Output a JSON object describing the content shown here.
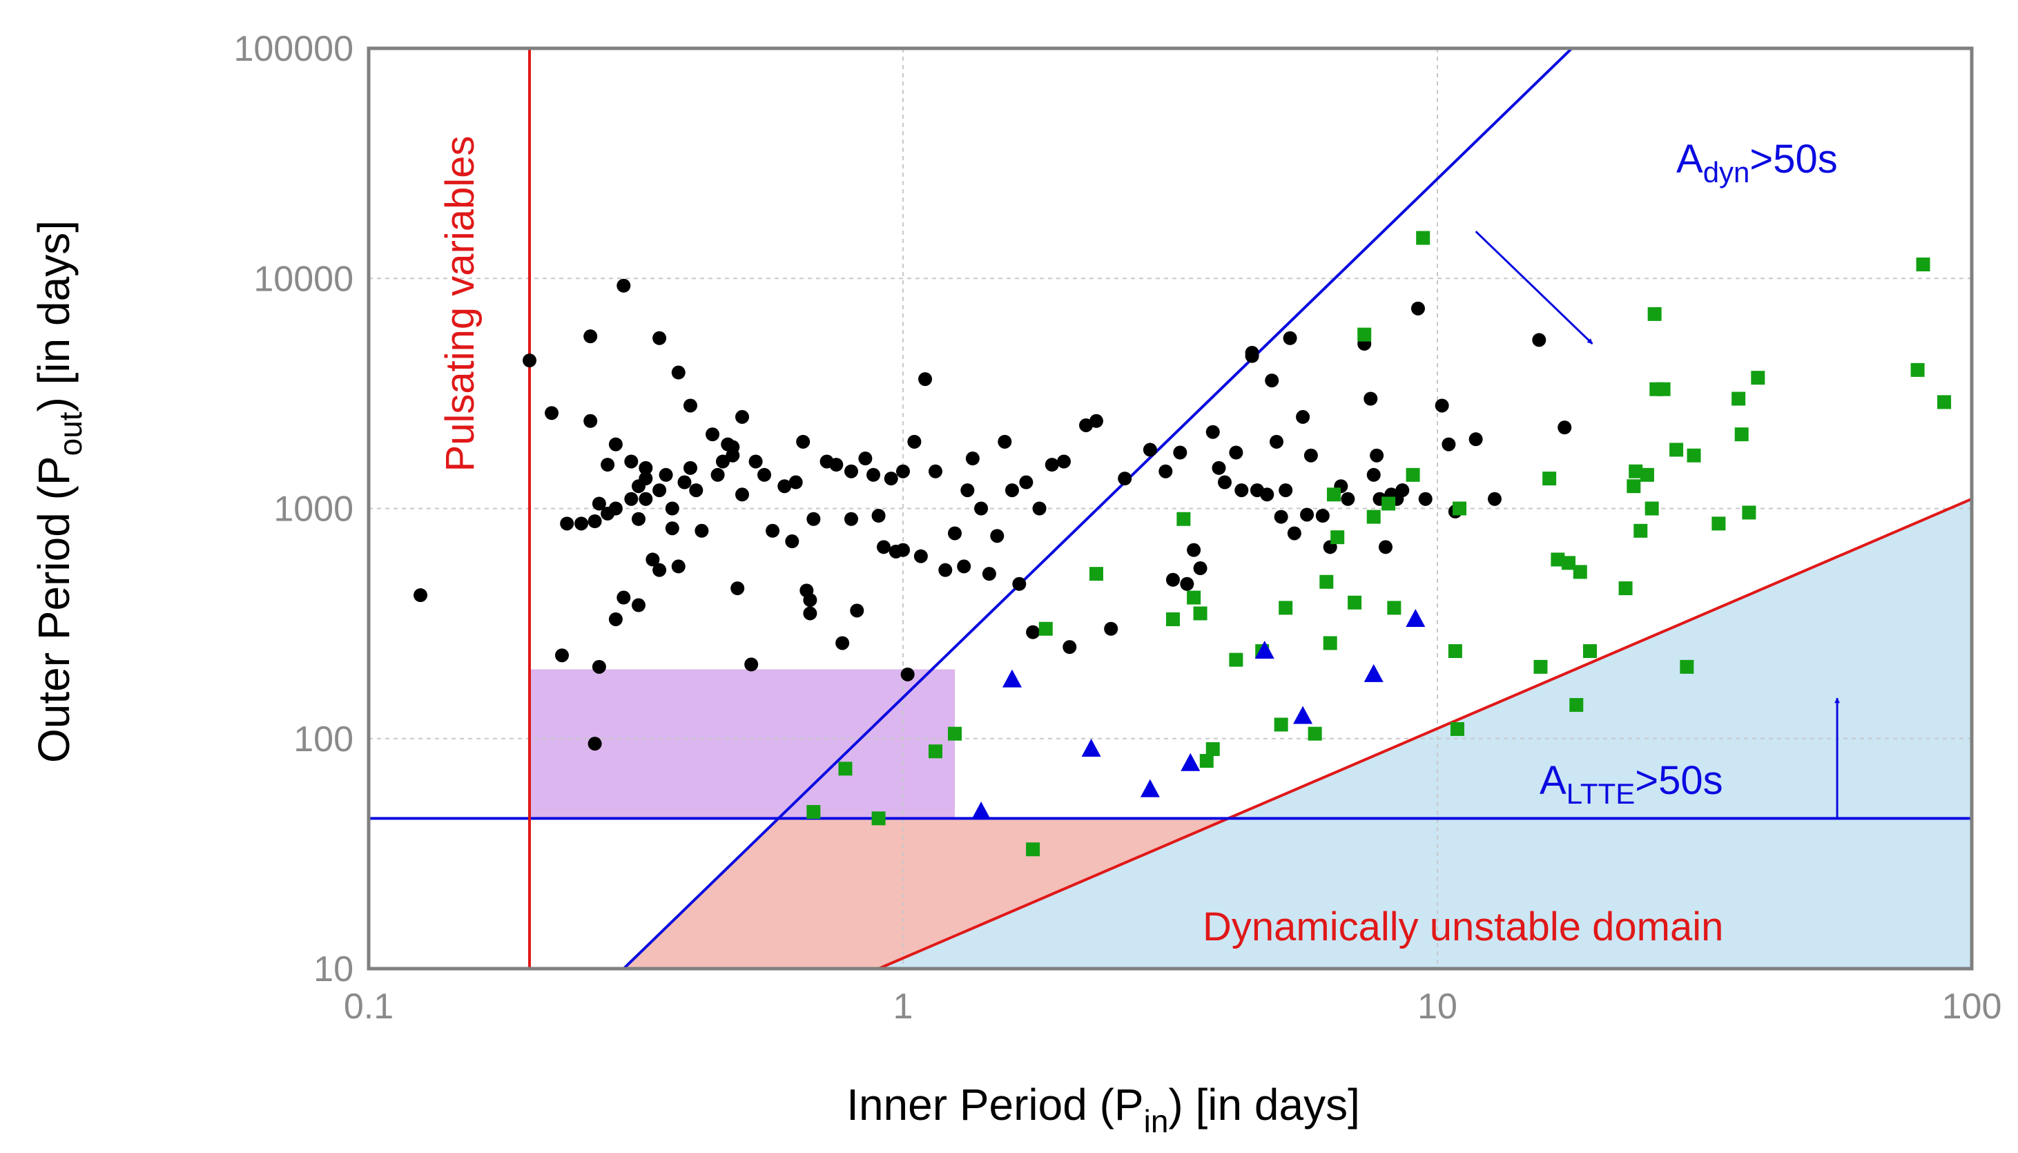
{
  "colors": {
    "black_points": "#000000",
    "green_points": "#12a012",
    "blue_points": "#0000e0",
    "blue_line": "#0a0ae0",
    "red_line": "#e01818",
    "unstable_fill": "#cce6f4",
    "pink_fill": "#f3bfb8",
    "purple_fill": "#dcb6ee",
    "axis_text": "#8a8a8a",
    "frame": "#808080"
  },
  "chart_data": {
    "type": "scatter",
    "xscale": "log",
    "yscale": "log",
    "xlim": [
      0.1,
      100
    ],
    "ylim": [
      10,
      100000
    ],
    "grid": true,
    "xlabel": {
      "pre": "Inner Period (P",
      "sub": "in",
      "post": ") [in days]"
    },
    "ylabel": {
      "pre": "Outer Period (P",
      "sub": "out",
      "post": ") [in days]"
    },
    "xticks": [
      {
        "value": 0.1,
        "label": "0.1"
      },
      {
        "value": 1,
        "label": "1"
      },
      {
        "value": 10,
        "label": "10"
      },
      {
        "value": 100,
        "label": "100"
      }
    ],
    "yticks": [
      {
        "value": 10,
        "label": "10"
      },
      {
        "value": 100,
        "label": "100"
      },
      {
        "value": 1000,
        "label": "1000"
      },
      {
        "value": 10000,
        "label": "10000"
      },
      {
        "value": 100000,
        "label": "100000"
      }
    ],
    "lines": {
      "pulsating_limit_x": 0.2,
      "ltte_limit_y": 45,
      "dyn_line": {
        "x1": 0.3,
        "y1": 10,
        "x2": 17.85,
        "y2": 100000
      },
      "unstable_line": {
        "x1": 0.9,
        "y1": 10,
        "x2": 100,
        "y2": 1100
      }
    },
    "regions": {
      "purple": {
        "xmin": 0.2,
        "xmax": 1.25,
        "ymin": 45,
        "ymax": 200
      }
    },
    "annotations": {
      "pulsating": "Pulsating variables",
      "adyn": {
        "pre": "A",
        "sub": "dyn",
        "post": ">50s"
      },
      "altte": {
        "pre": "A",
        "sub": "LTTE",
        "post": ">50s"
      },
      "unstable": "Dynamically unstable domain",
      "adyn_arrow": {
        "from": [
          11.8,
          16000
        ],
        "to": [
          19.5,
          5200
        ]
      },
      "altte_arrow": {
        "from": [
          56,
          45
        ],
        "to": [
          56,
          150
        ]
      }
    },
    "series": [
      {
        "name": "black",
        "marker": "circle",
        "points": [
          [
            0.125,
            420
          ],
          [
            0.2,
            4400
          ],
          [
            0.22,
            2600
          ],
          [
            0.23,
            230
          ],
          [
            0.235,
            860
          ],
          [
            0.25,
            860
          ],
          [
            0.26,
            5600
          ],
          [
            0.26,
            2400
          ],
          [
            0.265,
            880
          ],
          [
            0.265,
            95
          ],
          [
            0.27,
            1050
          ],
          [
            0.27,
            205
          ],
          [
            0.28,
            1550
          ],
          [
            0.28,
            950
          ],
          [
            0.29,
            1900
          ],
          [
            0.29,
            1000
          ],
          [
            0.29,
            330
          ],
          [
            0.3,
            9300
          ],
          [
            0.3,
            410
          ],
          [
            0.31,
            1100
          ],
          [
            0.31,
            1600
          ],
          [
            0.32,
            1250
          ],
          [
            0.32,
            900
          ],
          [
            0.32,
            380
          ],
          [
            0.33,
            1100
          ],
          [
            0.33,
            1350
          ],
          [
            0.33,
            1500
          ],
          [
            0.34,
            600
          ],
          [
            0.35,
            5500
          ],
          [
            0.35,
            1200
          ],
          [
            0.35,
            540
          ],
          [
            0.36,
            1400
          ],
          [
            0.37,
            820
          ],
          [
            0.37,
            1000
          ],
          [
            0.38,
            3900
          ],
          [
            0.38,
            560
          ],
          [
            0.39,
            1300
          ],
          [
            0.4,
            1500
          ],
          [
            0.4,
            2800
          ],
          [
            0.41,
            1200
          ],
          [
            0.42,
            800
          ],
          [
            0.44,
            2100
          ],
          [
            0.45,
            1400
          ],
          [
            0.46,
            1600
          ],
          [
            0.47,
            1900
          ],
          [
            0.48,
            1850
          ],
          [
            0.48,
            1700
          ],
          [
            0.49,
            450
          ],
          [
            0.5,
            1150
          ],
          [
            0.5,
            2500
          ],
          [
            0.52,
            210
          ],
          [
            0.53,
            1600
          ],
          [
            0.55,
            1400
          ],
          [
            0.57,
            800
          ],
          [
            0.6,
            1250
          ],
          [
            0.62,
            720
          ],
          [
            0.63,
            1300
          ],
          [
            0.65,
            1950
          ],
          [
            0.66,
            440
          ],
          [
            0.67,
            350
          ],
          [
            0.67,
            400
          ],
          [
            0.68,
            900
          ],
          [
            0.72,
            1600
          ],
          [
            0.75,
            1550
          ],
          [
            0.77,
            260
          ],
          [
            0.8,
            1450
          ],
          [
            0.8,
            900
          ],
          [
            0.82,
            360
          ],
          [
            0.85,
            1650
          ],
          [
            0.88,
            1400
          ],
          [
            0.9,
            930
          ],
          [
            0.92,
            680
          ],
          [
            0.95,
            1350
          ],
          [
            0.97,
            650
          ],
          [
            1.0,
            1450
          ],
          [
            1.0,
            660
          ],
          [
            1.02,
            190
          ],
          [
            1.05,
            1950
          ],
          [
            1.08,
            620
          ],
          [
            1.1,
            3650
          ],
          [
            1.15,
            1450
          ],
          [
            1.2,
            540
          ],
          [
            1.25,
            780
          ],
          [
            1.3,
            560
          ],
          [
            1.32,
            1200
          ],
          [
            1.35,
            1650
          ],
          [
            1.4,
            1000
          ],
          [
            1.45,
            520
          ],
          [
            1.5,
            760
          ],
          [
            1.55,
            1950
          ],
          [
            1.6,
            1200
          ],
          [
            1.65,
            470
          ],
          [
            1.7,
            1300
          ],
          [
            1.75,
            290
          ],
          [
            1.8,
            1000
          ],
          [
            1.9,
            1550
          ],
          [
            2.0,
            1600
          ],
          [
            2.05,
            250
          ],
          [
            2.2,
            2300
          ],
          [
            2.3,
            2400
          ],
          [
            2.45,
            300
          ],
          [
            2.6,
            1350
          ],
          [
            2.9,
            1800
          ],
          [
            3.1,
            1450
          ],
          [
            3.2,
            490
          ],
          [
            3.3,
            1750
          ],
          [
            3.4,
            470
          ],
          [
            3.5,
            660
          ],
          [
            3.6,
            550
          ],
          [
            3.8,
            2150
          ],
          [
            3.9,
            1500
          ],
          [
            4.0,
            1300
          ],
          [
            4.2,
            1750
          ],
          [
            4.3,
            1200
          ],
          [
            4.5,
            4600
          ],
          [
            4.5,
            4750
          ],
          [
            4.6,
            1200
          ],
          [
            4.8,
            1150
          ],
          [
            4.9,
            3600
          ],
          [
            5.0,
            1950
          ],
          [
            5.1,
            920
          ],
          [
            5.2,
            1200
          ],
          [
            5.3,
            5500
          ],
          [
            5.4,
            780
          ],
          [
            5.6,
            2500
          ],
          [
            5.7,
            940
          ],
          [
            5.8,
            1700
          ],
          [
            6.1,
            930
          ],
          [
            6.3,
            680
          ],
          [
            6.6,
            1250
          ],
          [
            6.8,
            1100
          ],
          [
            7.3,
            5200
          ],
          [
            7.5,
            3000
          ],
          [
            7.6,
            1400
          ],
          [
            7.7,
            1700
          ],
          [
            7.8,
            1100
          ],
          [
            8.0,
            680
          ],
          [
            8.2,
            1150
          ],
          [
            8.4,
            1100
          ],
          [
            8.6,
            1200
          ],
          [
            9.2,
            7400
          ],
          [
            9.5,
            1100
          ],
          [
            10.2,
            2800
          ],
          [
            10.5,
            1900
          ],
          [
            10.8,
            970
          ],
          [
            11.8,
            2000
          ],
          [
            12.8,
            1100
          ],
          [
            15.5,
            5400
          ],
          [
            17.3,
            2250
          ]
        ]
      },
      {
        "name": "green",
        "marker": "square",
        "points": [
          [
            0.68,
            48
          ],
          [
            0.78,
            74
          ],
          [
            0.9,
            45
          ],
          [
            1.15,
            88
          ],
          [
            1.25,
            105
          ],
          [
            1.75,
            33
          ],
          [
            1.85,
            300
          ],
          [
            2.3,
            520
          ],
          [
            3.2,
            330
          ],
          [
            3.35,
            900
          ],
          [
            3.5,
            410
          ],
          [
            3.6,
            350
          ],
          [
            3.7,
            80
          ],
          [
            3.8,
            90
          ],
          [
            4.2,
            220
          ],
          [
            4.7,
            240
          ],
          [
            5.1,
            115
          ],
          [
            5.2,
            370
          ],
          [
            5.9,
            105
          ],
          [
            6.2,
            480
          ],
          [
            6.3,
            260
          ],
          [
            6.4,
            1150
          ],
          [
            6.5,
            750
          ],
          [
            7.0,
            390
          ],
          [
            7.3,
            5700
          ],
          [
            7.6,
            920
          ],
          [
            8.1,
            1050
          ],
          [
            8.3,
            370
          ],
          [
            9.0,
            1400
          ],
          [
            9.4,
            15000
          ],
          [
            10.8,
            240
          ],
          [
            10.9,
            110
          ],
          [
            11.0,
            1000
          ],
          [
            15.6,
            205
          ],
          [
            16.2,
            1350
          ],
          [
            16.8,
            600
          ],
          [
            17.6,
            580
          ],
          [
            18.2,
            140
          ],
          [
            18.5,
            530
          ],
          [
            19.3,
            240
          ],
          [
            22.5,
            450
          ],
          [
            23.3,
            1250
          ],
          [
            23.5,
            1450
          ],
          [
            24.0,
            800
          ],
          [
            24.7,
            1400
          ],
          [
            25.2,
            1000
          ],
          [
            25.5,
            7000
          ],
          [
            25.7,
            3300
          ],
          [
            26.5,
            3300
          ],
          [
            28.0,
            1800
          ],
          [
            29.3,
            205
          ],
          [
            30.2,
            1700
          ],
          [
            33.6,
            860
          ],
          [
            36.6,
            3000
          ],
          [
            37.1,
            2100
          ],
          [
            38.3,
            960
          ],
          [
            39.8,
            3700
          ],
          [
            79.2,
            4000
          ],
          [
            81.1,
            11500
          ],
          [
            88.8,
            2900
          ]
        ]
      },
      {
        "name": "blue",
        "marker": "triangle",
        "points": [
          [
            1.4,
            48
          ],
          [
            1.6,
            180
          ],
          [
            2.25,
            90
          ],
          [
            2.9,
            60
          ],
          [
            3.45,
            78
          ],
          [
            4.75,
            240
          ],
          [
            5.6,
            125
          ],
          [
            7.6,
            190
          ],
          [
            9.1,
            330
          ]
        ]
      }
    ]
  }
}
